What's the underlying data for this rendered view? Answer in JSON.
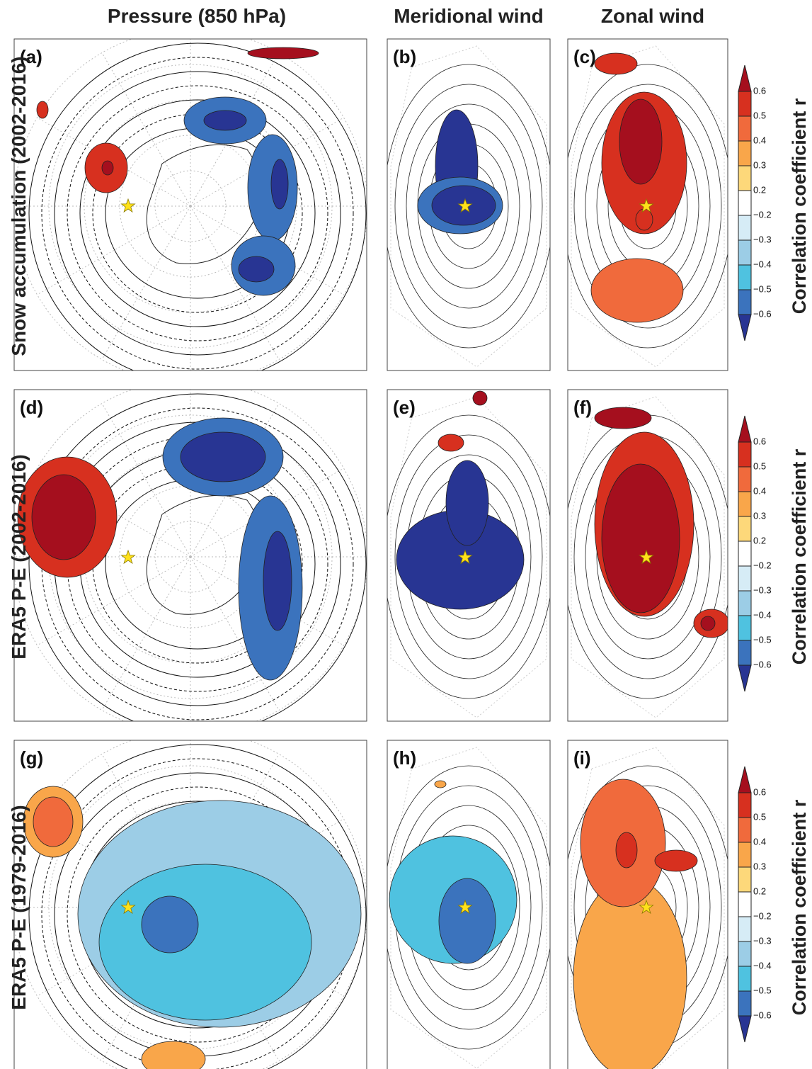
{
  "columns": [
    "Pressure (850 hPa)",
    "Meridional wind",
    "Zonal wind"
  ],
  "rows": [
    "Snow accumulation (2002-2016)",
    "ERA5 P-E (2002-2016)",
    "ERA5 P-E (1979-2016)"
  ],
  "panels": [
    "(a)",
    "(b)",
    "(c)",
    "(d)",
    "(e)",
    "(f)",
    "(g)",
    "(h)",
    "(i)"
  ],
  "colorbar": {
    "title": "Correlation coefficient r",
    "labels": [
      "0.6",
      "0.5",
      "0.4",
      "0.3",
      "0.2",
      "−0.2",
      "−0.3",
      "−0.4",
      "−0.5",
      "−0.6"
    ],
    "colors": [
      "#a50f1e",
      "#d7301f",
      "#f06a3c",
      "#f9a64a",
      "#fdd87a",
      "#ffffff",
      "#d6ecf6",
      "#9ccde6",
      "#4fc2e0",
      "#3b73bd",
      "#283593"
    ]
  }
}
